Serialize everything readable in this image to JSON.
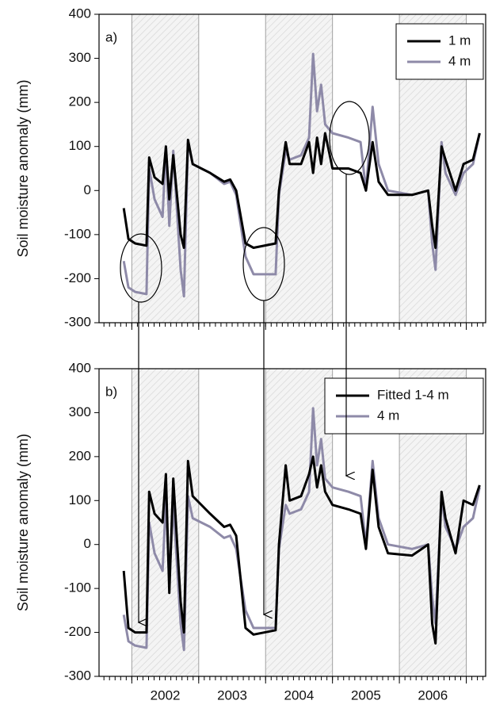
{
  "chart_data": [
    {
      "type": "line",
      "panel_label": "a)",
      "y_label": "Soil moisture anomaly (mm)",
      "x": [
        2001.88,
        2001.95,
        2002.05,
        2002.22,
        2002.26,
        2002.34,
        2002.46,
        2002.51,
        2002.56,
        2002.62,
        2002.73,
        2002.78,
        2002.84,
        2002.91,
        2003.17,
        2003.38,
        2003.47,
        2003.56,
        2003.7,
        2003.82,
        2004.15,
        2004.2,
        2004.3,
        2004.36,
        2004.53,
        2004.65,
        2004.71,
        2004.77,
        2004.83,
        2004.89,
        2005.0,
        2005.24,
        2005.42,
        2005.5,
        2005.6,
        2005.69,
        2005.83,
        2006.19,
        2006.43,
        2006.49,
        2006.54,
        2006.63,
        2006.69,
        2006.84,
        2006.96,
        2007.1,
        2007.2
      ],
      "series": [
        {
          "name": "1 m",
          "color": "#000000",
          "values": [
            -40,
            -110,
            -120,
            -125,
            75,
            30,
            15,
            100,
            -20,
            80,
            -100,
            -130,
            115,
            60,
            40,
            20,
            25,
            0,
            -120,
            -130,
            -120,
            0,
            110,
            60,
            60,
            110,
            40,
            120,
            60,
            130,
            50,
            50,
            40,
            0,
            110,
            20,
            -10,
            -10,
            0,
            -80,
            -130,
            100,
            70,
            0,
            60,
            70,
            130
          ]
        },
        {
          "name": "4 m",
          "color": "#8e8aa8",
          "values": [
            -160,
            -220,
            -230,
            -235,
            50,
            -20,
            -60,
            100,
            -80,
            90,
            -180,
            -240,
            110,
            60,
            40,
            15,
            20,
            -10,
            -150,
            -190,
            -190,
            -10,
            90,
            70,
            80,
            120,
            310,
            180,
            240,
            150,
            130,
            120,
            110,
            0,
            190,
            60,
            0,
            -10,
            0,
            -120,
            -180,
            110,
            40,
            -10,
            40,
            60,
            130
          ]
        }
      ],
      "xlim": [
        2001.51,
        2007.29
      ],
      "xticks": [
        {
          "value": 2002.5,
          "label": "2002"
        },
        {
          "value": 2003.5,
          "label": "2003"
        },
        {
          "value": 2004.5,
          "label": "2004"
        },
        {
          "value": 2005.5,
          "label": "2005"
        },
        {
          "value": 2006.5,
          "label": "2006"
        }
      ],
      "x_grid": [
        2002,
        2003,
        2004,
        2005,
        2006,
        2007
      ],
      "shaded_periods": [
        [
          2002,
          2003
        ],
        [
          2004,
          2005
        ],
        [
          2006,
          2007
        ]
      ],
      "ylim": [
        -300,
        400
      ],
      "yticks": [
        -300,
        -200,
        -100,
        0,
        100,
        200,
        300,
        400
      ],
      "legend": "upper right"
    },
    {
      "type": "line",
      "panel_label": "b)",
      "y_label": "Soil moisture anomaly (mm)",
      "x": [
        2001.88,
        2001.95,
        2002.05,
        2002.22,
        2002.26,
        2002.34,
        2002.46,
        2002.51,
        2002.56,
        2002.62,
        2002.73,
        2002.78,
        2002.84,
        2002.91,
        2003.17,
        2003.38,
        2003.47,
        2003.56,
        2003.7,
        2003.82,
        2004.15,
        2004.2,
        2004.3,
        2004.36,
        2004.53,
        2004.65,
        2004.71,
        2004.77,
        2004.83,
        2004.89,
        2005.0,
        2005.24,
        2005.42,
        2005.5,
        2005.6,
        2005.69,
        2005.83,
        2006.19,
        2006.43,
        2006.49,
        2006.54,
        2006.63,
        2006.69,
        2006.84,
        2006.96,
        2007.1,
        2007.2
      ],
      "series": [
        {
          "name": "Fitted 1-4 m",
          "color": "#000000",
          "values": [
            -60,
            -190,
            -200,
            -200,
            120,
            70,
            50,
            160,
            -110,
            150,
            -130,
            -200,
            190,
            110,
            70,
            40,
            45,
            20,
            -190,
            -205,
            -195,
            0,
            180,
            100,
            110,
            160,
            200,
            130,
            180,
            120,
            90,
            80,
            70,
            -10,
            170,
            40,
            -20,
            -25,
            0,
            -180,
            -225,
            120,
            60,
            -20,
            100,
            90,
            135
          ]
        },
        {
          "name": "4 m",
          "color": "#8e8aa8",
          "values": [
            -160,
            -220,
            -230,
            -235,
            50,
            -20,
            -60,
            100,
            -80,
            90,
            -180,
            -240,
            110,
            60,
            40,
            15,
            20,
            -10,
            -150,
            -190,
            -190,
            -10,
            90,
            70,
            80,
            120,
            310,
            180,
            240,
            150,
            130,
            120,
            110,
            0,
            190,
            60,
            0,
            -10,
            0,
            -120,
            -180,
            110,
            40,
            -10,
            40,
            60,
            130
          ]
        }
      ],
      "xlim": [
        2001.51,
        2007.29
      ],
      "xticks": [
        {
          "value": 2002.5,
          "label": "2002"
        },
        {
          "value": 2003.5,
          "label": "2003"
        },
        {
          "value": 2004.5,
          "label": "2004"
        },
        {
          "value": 2005.5,
          "label": "2005"
        },
        {
          "value": 2006.5,
          "label": "2006"
        }
      ],
      "x_grid": [
        2002,
        2003,
        2004,
        2005,
        2006,
        2007
      ],
      "shaded_periods": [
        [
          2002,
          2003
        ],
        [
          2004,
          2005
        ],
        [
          2006,
          2007
        ]
      ],
      "ylim": [
        -300,
        400
      ],
      "yticks": [
        -300,
        -200,
        -100,
        0,
        100,
        200,
        300,
        400
      ],
      "legend": "upper right"
    }
  ]
}
